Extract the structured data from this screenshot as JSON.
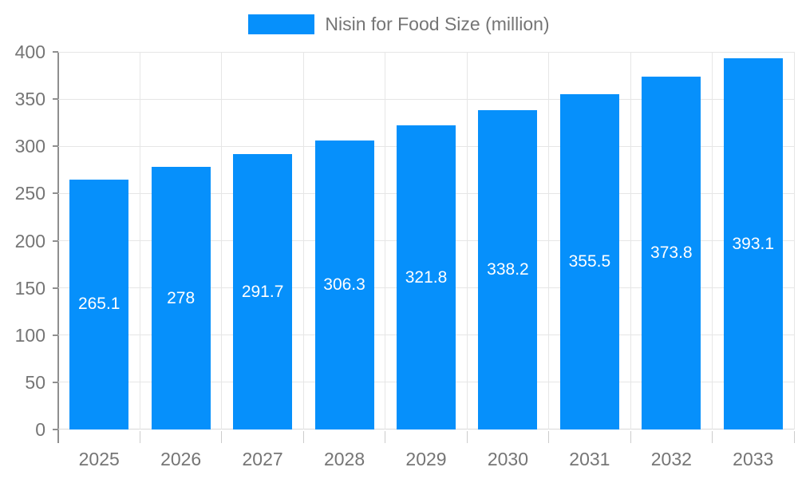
{
  "legend": {
    "label": "Nisin for Food Size (million)"
  },
  "chart_data": {
    "type": "bar",
    "title": "Nisin for Food Size (million)",
    "categories": [
      "2025",
      "2026",
      "2027",
      "2028",
      "2029",
      "2030",
      "2031",
      "2032",
      "2033"
    ],
    "series": [
      {
        "name": "Nisin for Food Size (million)",
        "values": [
          265.1,
          278,
          291.7,
          306.3,
          321.8,
          338.2,
          355.5,
          373.8,
          393.1
        ]
      }
    ],
    "value_labels": [
      "265.1",
      "278",
      "291.7",
      "306.3",
      "321.8",
      "338.2",
      "355.5",
      "373.8",
      "393.1"
    ],
    "xlabel": "",
    "ylabel": "",
    "ylim": [
      0,
      400
    ],
    "yticks": [
      0,
      50,
      100,
      150,
      200,
      250,
      300,
      350,
      400
    ],
    "grid": true,
    "legend_position": "top",
    "colors": {
      "bar": "#0690FB",
      "bar_label": "#FFFFFF",
      "axis_text": "#757575",
      "grid_line": "#E6E6E6",
      "axis_line": "#8F8F8F",
      "tick_line": "#CCCCCC"
    }
  }
}
